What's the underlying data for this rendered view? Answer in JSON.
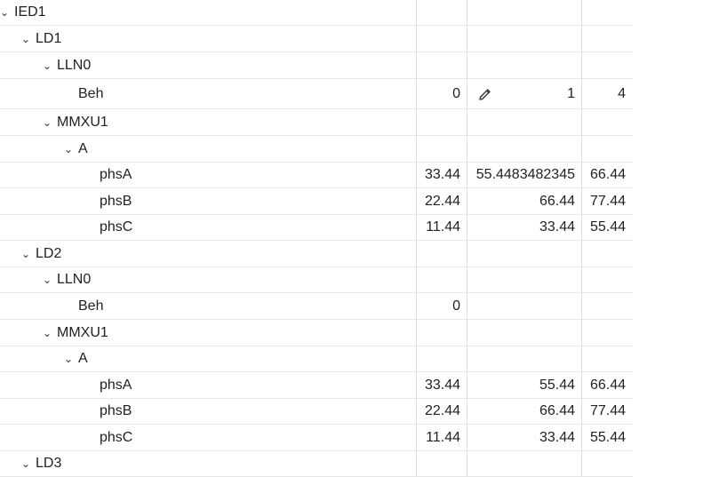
{
  "colors": {
    "text": "#222222",
    "row_border": "#e6e6e6",
    "column_border": "#dcdcdc",
    "background": "#ffffff"
  },
  "tree": {
    "rows": [
      {
        "label": "IED1",
        "expandable": true,
        "expanded": true,
        "values": [
          "",
          "",
          ""
        ]
      },
      {
        "label": "LD1",
        "expandable": true,
        "expanded": true,
        "values": [
          "",
          "",
          ""
        ]
      },
      {
        "label": "LLN0",
        "expandable": true,
        "expanded": true,
        "values": [
          "",
          "",
          ""
        ]
      },
      {
        "label": "Beh",
        "expandable": false,
        "values": [
          "0",
          "1",
          "4"
        ],
        "editable_icon": "pencil-icon"
      },
      {
        "label": "MMXU1",
        "expandable": true,
        "expanded": true,
        "values": [
          "",
          "",
          ""
        ]
      },
      {
        "label": "A",
        "expandable": true,
        "expanded": true,
        "values": [
          "",
          "",
          ""
        ]
      },
      {
        "label": "phsA",
        "expandable": false,
        "values": [
          "33.44",
          "55.4483482345",
          "66.44"
        ]
      },
      {
        "label": "phsB",
        "expandable": false,
        "values": [
          "22.44",
          "66.44",
          "77.44"
        ]
      },
      {
        "label": "phsC",
        "expandable": false,
        "values": [
          "11.44",
          "33.44",
          "55.44"
        ]
      },
      {
        "label": "LD2",
        "expandable": true,
        "expanded": true,
        "values": [
          "",
          "",
          ""
        ]
      },
      {
        "label": "LLN0",
        "expandable": true,
        "expanded": true,
        "values": [
          "",
          "",
          ""
        ]
      },
      {
        "label": "Beh",
        "expandable": false,
        "values": [
          "0",
          "",
          ""
        ]
      },
      {
        "label": "MMXU1",
        "expandable": true,
        "expanded": true,
        "values": [
          "",
          "",
          ""
        ]
      },
      {
        "label": "A",
        "expandable": true,
        "expanded": true,
        "values": [
          "",
          "",
          ""
        ]
      },
      {
        "label": "phsA",
        "expandable": false,
        "values": [
          "33.44",
          "55.44",
          "66.44"
        ]
      },
      {
        "label": "phsB",
        "expandable": false,
        "values": [
          "22.44",
          "66.44",
          "77.44"
        ]
      },
      {
        "label": "phsC",
        "expandable": false,
        "values": [
          "11.44",
          "33.44",
          "55.44"
        ]
      },
      {
        "label": "LD3",
        "expandable": true,
        "expanded": true,
        "values": [
          "",
          "",
          ""
        ]
      }
    ]
  }
}
